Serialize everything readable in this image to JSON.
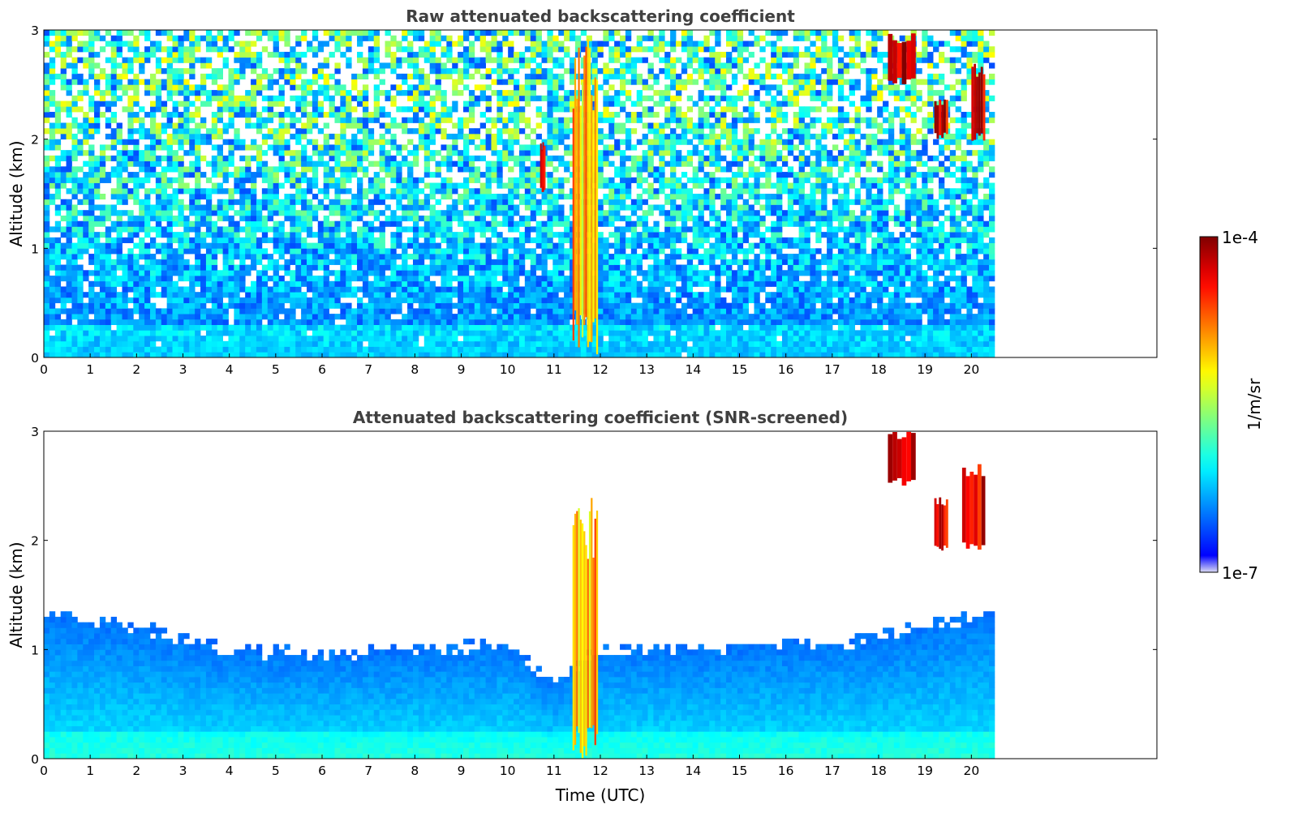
{
  "chart_data": [
    {
      "type": "heatmap",
      "id": "raw",
      "title": "Raw attenuated backscattering coefficient",
      "xlabel": "",
      "ylabel": "Altitude (km)",
      "xlim": [
        0,
        24
      ],
      "ylim": [
        0,
        3
      ],
      "data_extent_x": [
        0,
        20.5
      ],
      "x_ticks": [
        0,
        1,
        2,
        3,
        4,
        5,
        6,
        7,
        8,
        9,
        10,
        11,
        12,
        13,
        14,
        15,
        16,
        17,
        18,
        19,
        20
      ],
      "y_ticks": [
        0,
        1,
        2,
        3
      ],
      "screening": "none",
      "features": [
        {
          "kind": "cloud_column",
          "x": [
            11.4,
            11.95
          ],
          "y": [
            0,
            3
          ]
        },
        {
          "kind": "cloud_streaks",
          "x": [
            18.2,
            18.8
          ],
          "y": [
            2.5,
            3
          ]
        },
        {
          "kind": "cloud_streaks",
          "x": [
            19.2,
            19.5
          ],
          "y": [
            2.0,
            2.4
          ]
        },
        {
          "kind": "cloud_streaks",
          "x": [
            20.0,
            20.3
          ],
          "y": [
            1.95,
            2.7
          ]
        },
        {
          "kind": "cloud_streaks",
          "x": [
            10.7,
            10.8
          ],
          "y": [
            1.5,
            2.0
          ]
        }
      ]
    },
    {
      "type": "heatmap",
      "id": "screened",
      "title": "Attenuated backscattering coefficient (SNR-screened)",
      "xlabel": "Time (UTC)",
      "ylabel": "Altitude (km)",
      "xlim": [
        0,
        24
      ],
      "ylim": [
        0,
        3
      ],
      "data_extent_x": [
        0,
        20.5
      ],
      "x_ticks": [
        0,
        1,
        2,
        3,
        4,
        5,
        6,
        7,
        8,
        9,
        10,
        11,
        12,
        13,
        14,
        15,
        16,
        17,
        18,
        19,
        20
      ],
      "y_ticks": [
        0,
        1,
        2,
        3
      ],
      "screening": "SNR",
      "boundary_layer_top_km": [
        [
          0,
          1.35
        ],
        [
          2,
          1.2
        ],
        [
          4,
          1.0
        ],
        [
          6,
          0.95
        ],
        [
          8,
          1.0
        ],
        [
          10,
          1.05
        ],
        [
          11,
          0.7
        ],
        [
          12,
          1.0
        ],
        [
          14,
          1.0
        ],
        [
          16,
          1.05
        ],
        [
          18,
          1.1
        ],
        [
          20,
          1.3
        ],
        [
          20.5,
          1.35
        ]
      ],
      "features": [
        {
          "kind": "cloud_column",
          "x": [
            11.4,
            11.95
          ],
          "y": [
            0,
            2.4
          ]
        },
        {
          "kind": "cloud_streaks",
          "x": [
            18.2,
            18.8
          ],
          "y": [
            2.5,
            3
          ]
        },
        {
          "kind": "cloud_streaks",
          "x": [
            19.2,
            19.5
          ],
          "y": [
            1.9,
            2.4
          ]
        },
        {
          "kind": "cloud_streaks",
          "x": [
            19.8,
            20.3
          ],
          "y": [
            1.9,
            2.7
          ]
        }
      ]
    }
  ],
  "colorbar": {
    "label": "1/m/sr",
    "max_label": "1e-4",
    "min_label": "1e-7",
    "scale": "log",
    "range": [
      1e-07,
      0.0001
    ],
    "colormap": "jet"
  }
}
